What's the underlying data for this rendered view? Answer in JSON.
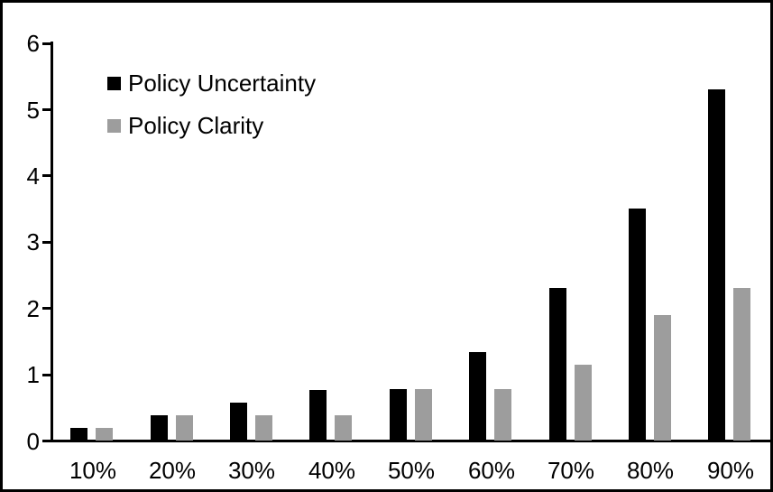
{
  "chart_data": {
    "type": "bar",
    "title": "",
    "xlabel": "",
    "ylabel": "",
    "categories": [
      "10%",
      "20%",
      "30%",
      "40%",
      "50%",
      "60%",
      "70%",
      "80%",
      "90%"
    ],
    "series": [
      {
        "name": "Policy Uncertainty",
        "color": "#000000",
        "values": [
          0.19,
          0.38,
          0.57,
          0.76,
          0.78,
          1.33,
          2.3,
          3.5,
          5.3
        ]
      },
      {
        "name": "Policy Clarity",
        "color": "#9d9d9d",
        "values": [
          0.19,
          0.38,
          0.38,
          0.38,
          0.78,
          0.78,
          1.15,
          1.9,
          2.3
        ]
      }
    ],
    "ylim": [
      0,
      6
    ],
    "yticks": [
      0,
      1,
      2,
      3,
      4,
      5,
      6
    ],
    "grid": false,
    "legend_position": "top-left",
    "axis_color": "#000000",
    "background_color": "#ffffff",
    "border_color": "#000000"
  }
}
